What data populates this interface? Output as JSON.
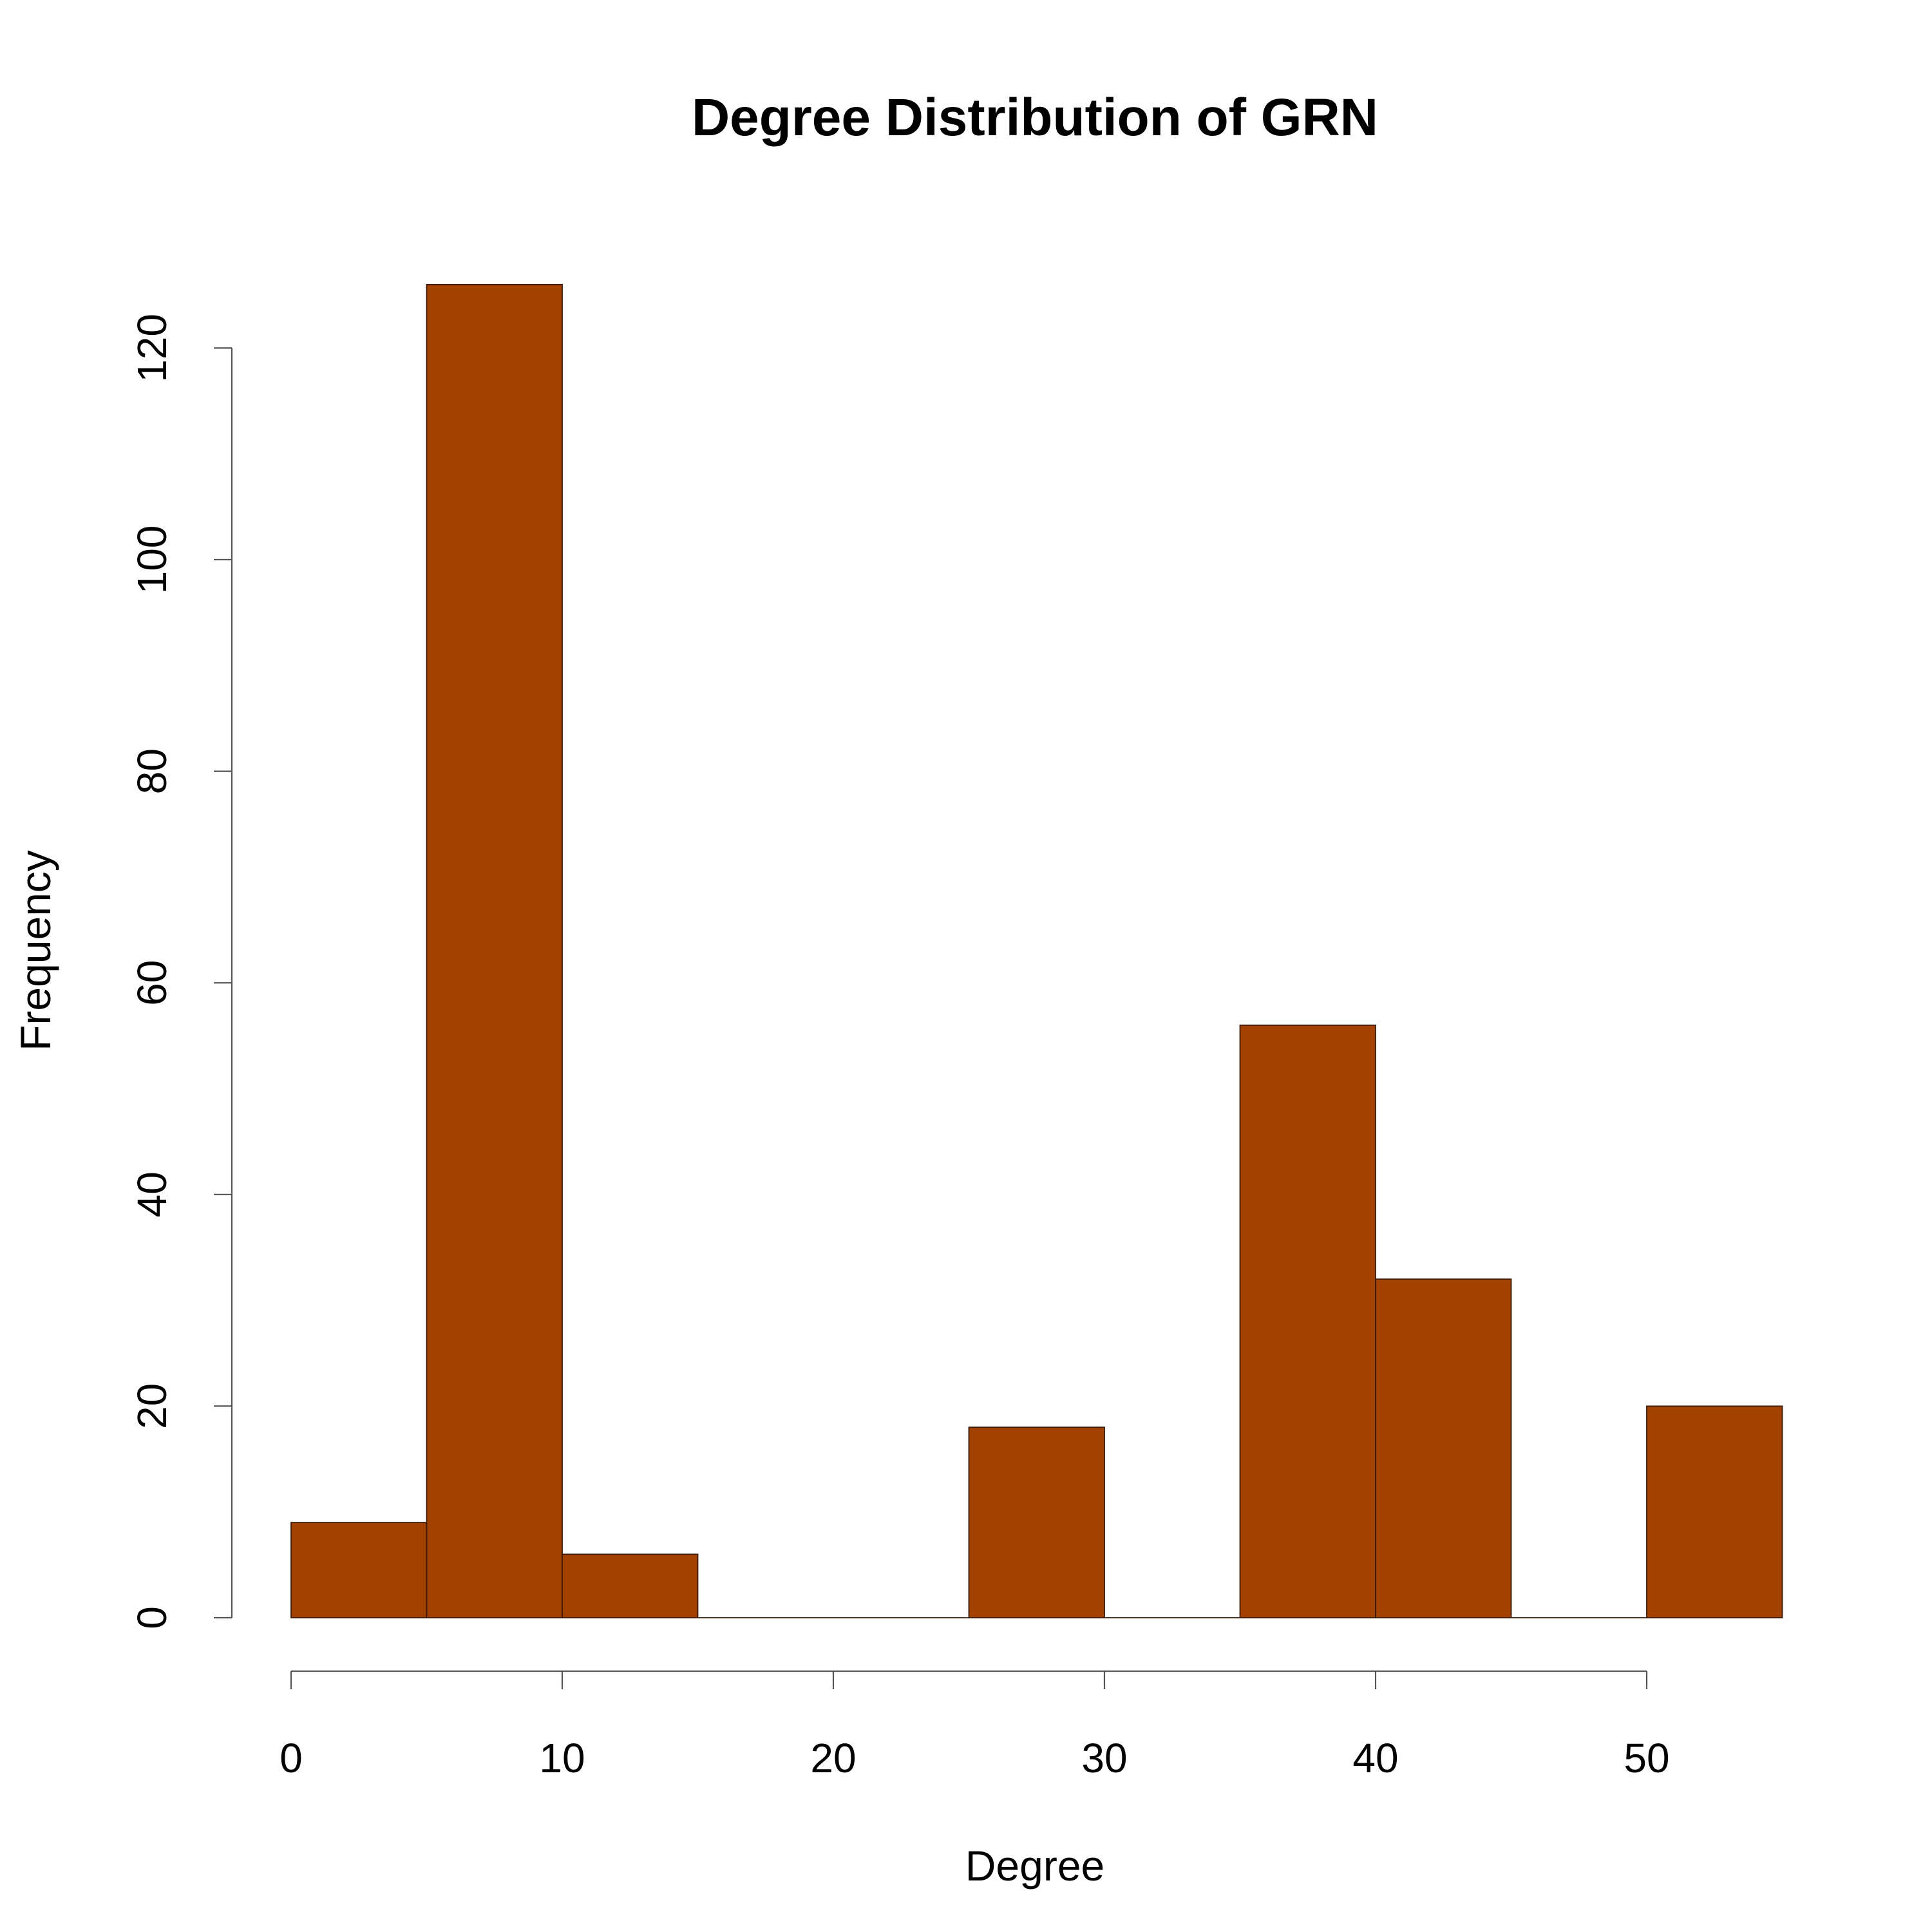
{
  "chart_data": {
    "type": "bar",
    "title": "Degree Distribution of GRN",
    "xlabel": "Degree",
    "ylabel": "Frequency",
    "bin_edges": [
      0,
      5,
      10,
      15,
      20,
      25,
      30,
      35,
      40,
      45,
      50,
      55
    ],
    "values": [
      9,
      126,
      6,
      0,
      0,
      18,
      0,
      56,
      32,
      0,
      20
    ],
    "xlim": [
      0,
      55
    ],
    "ylim": [
      0,
      126
    ],
    "x_ticks": [
      0,
      10,
      20,
      30,
      40,
      50
    ],
    "y_ticks": [
      0,
      20,
      40,
      60,
      80,
      100,
      120
    ],
    "bar_color": "#A34100",
    "grid": false,
    "legend": "none"
  }
}
